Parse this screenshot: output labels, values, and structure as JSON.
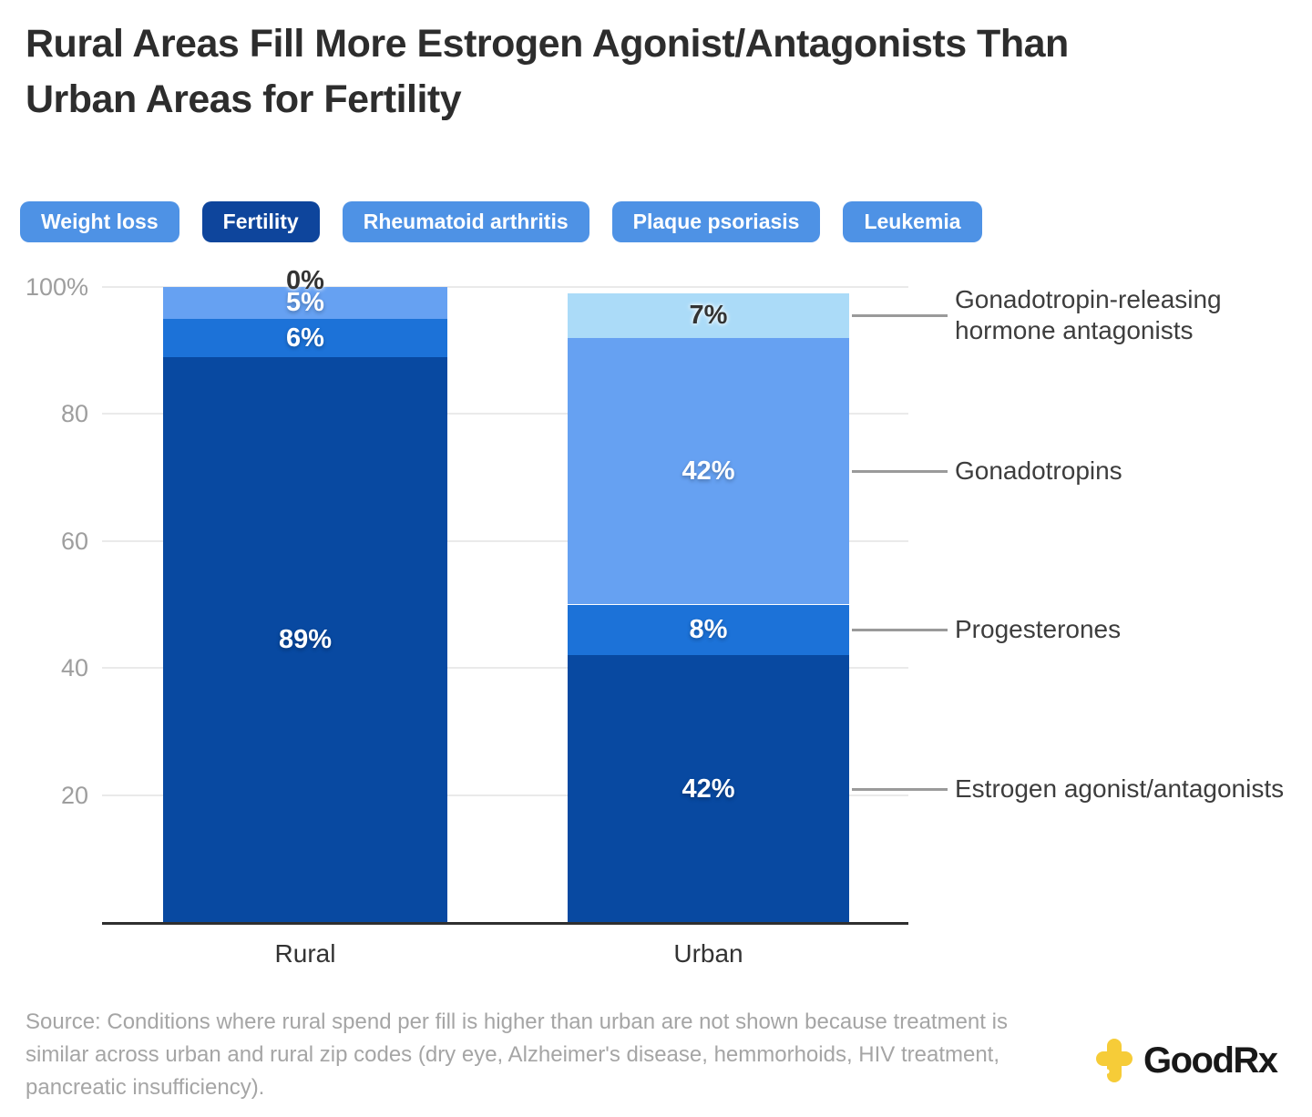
{
  "title_lines": [
    "Rural Areas Fill More Estrogen Agonist/Antagonists Than",
    "Urban Areas for Fertility"
  ],
  "tabs": {
    "selected": "Fertility",
    "items": [
      {
        "label": "Weight loss",
        "active": false
      },
      {
        "label": "Fertility",
        "active": true
      },
      {
        "label": "Rheumatoid arthritis",
        "active": false
      },
      {
        "label": "Plaque psoriasis",
        "active": false
      },
      {
        "label": "Leukemia",
        "active": false
      }
    ]
  },
  "chart_data": {
    "type": "bar",
    "stacked": true,
    "categories": [
      "Rural",
      "Urban"
    ],
    "series": [
      {
        "name": "Estrogen agonist/antagonists",
        "values": [
          89,
          42
        ],
        "color": "#0849a1",
        "label_style": "light"
      },
      {
        "name": "Progesterones",
        "values": [
          6,
          8
        ],
        "color": "#1c72d8",
        "label_style": "light"
      },
      {
        "name": "Gonadotropins",
        "values": [
          5,
          42
        ],
        "color": "#66a1f2",
        "label_style": "light"
      },
      {
        "name": "Gonadotropin-releasing hormone antagonists",
        "values": [
          0,
          7
        ],
        "color": "#abdbf8",
        "label_style": "dark"
      }
    ],
    "value_suffix": "%",
    "ylabel_ticks": [
      "100%",
      "80",
      "60",
      "40",
      "20"
    ],
    "ytick_values": [
      100,
      80,
      60,
      40,
      20
    ],
    "ylim": [
      0,
      100
    ],
    "grid": true,
    "legend_position": "right-annotations",
    "colors": {
      "grid": "#eaeaea",
      "axis": "#2f2f2f",
      "connector": "#9a9a9a"
    }
  },
  "source": "Source: Conditions where rural spend per fill is higher than urban are not shown because treatment is similar across urban and rural zip codes (dry eye, Alzheimer's disease, hemmorhoids, HIV treatment, pancreatic insufficiency).",
  "logo": {
    "text": "GoodRx",
    "icon": "plus-icon",
    "icon_color": "#f6cc38"
  }
}
